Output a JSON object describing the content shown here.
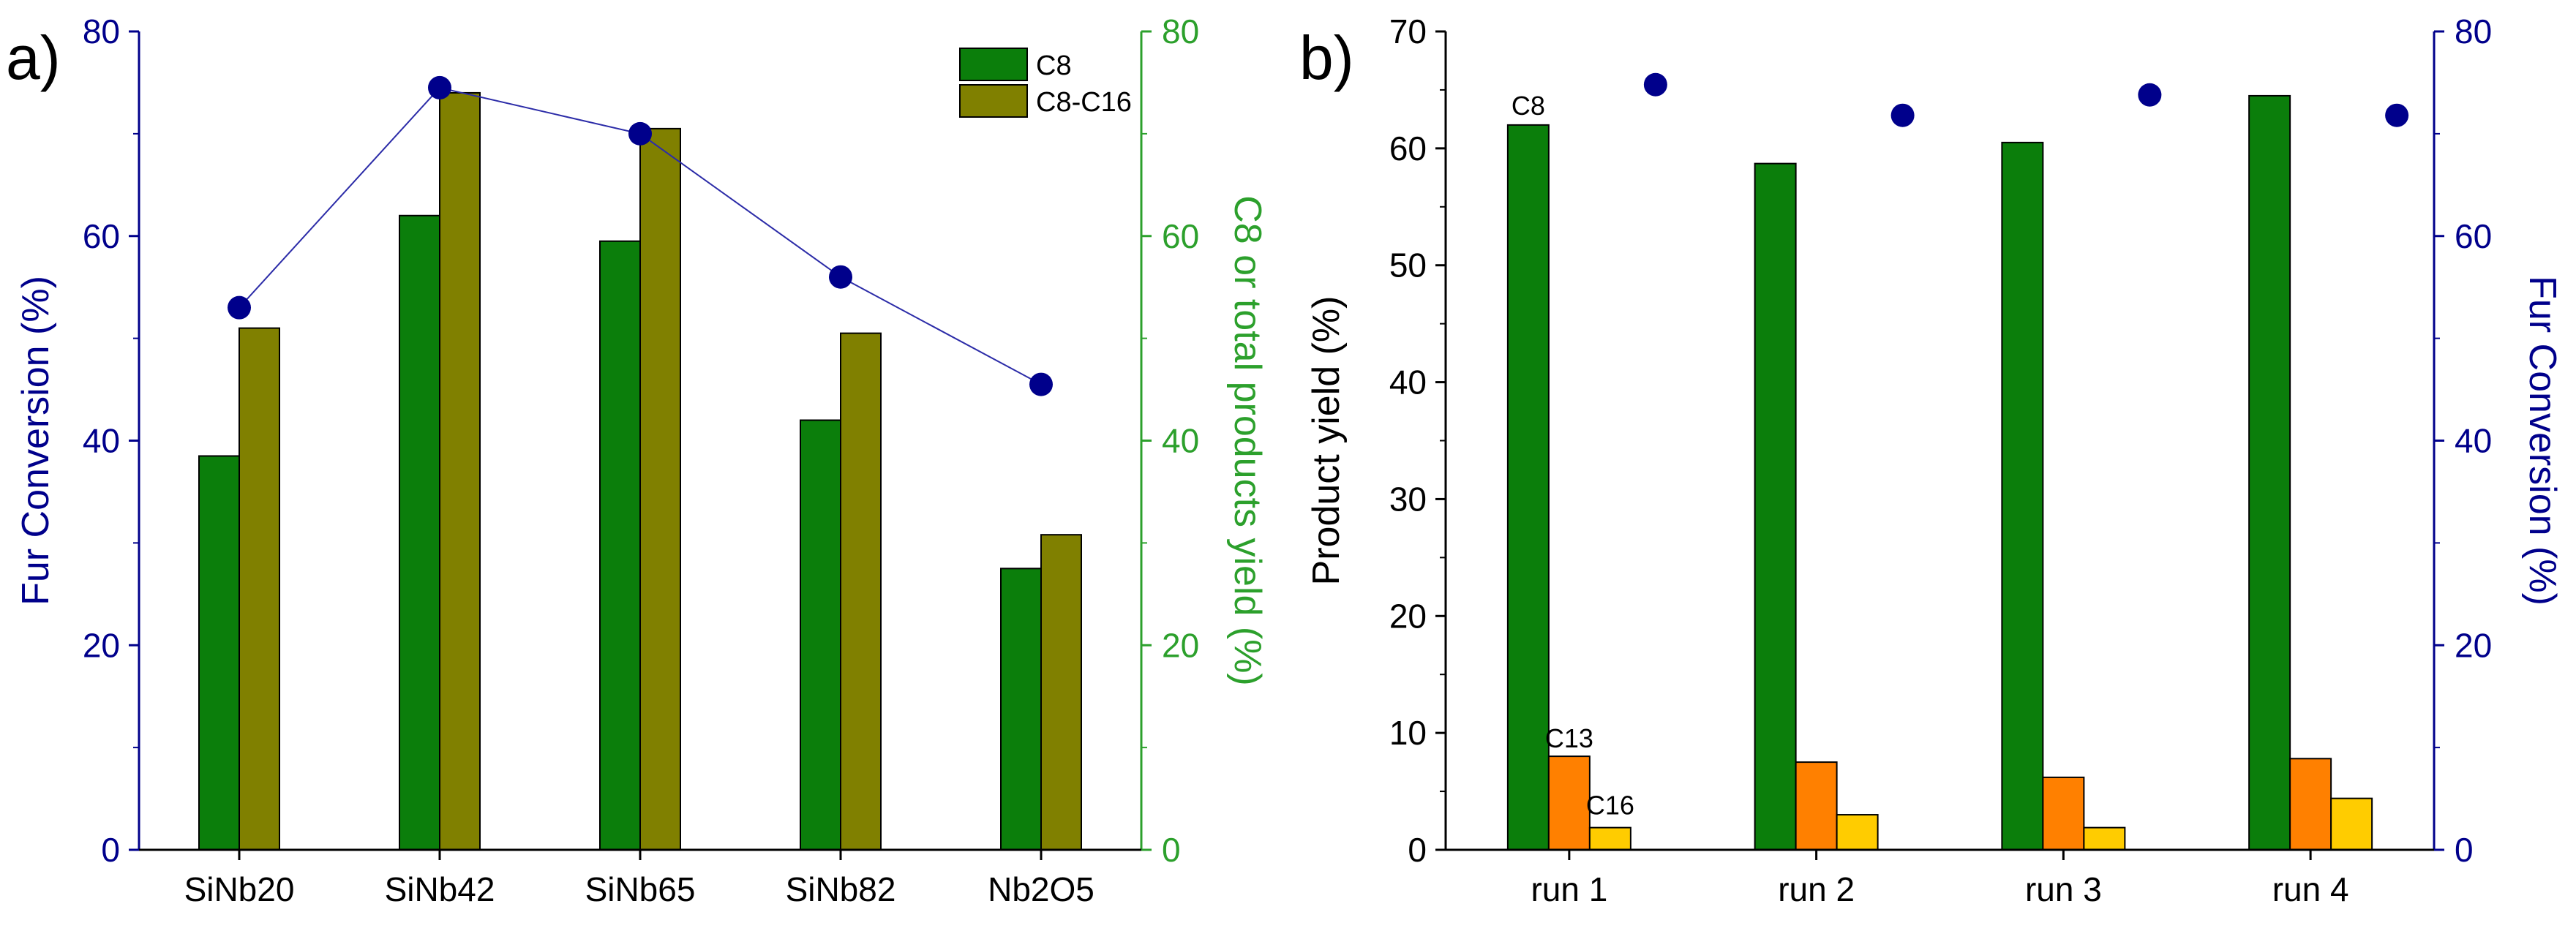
{
  "colors": {
    "c8": "#0b7e0b",
    "c8_c16": "#808000",
    "c13": "#ff8000",
    "c16": "#ffcc00",
    "conversion": "#00008b",
    "conversion_line": "#2c2ca8",
    "right_axis_a": "#2ca02c",
    "axis_black": "#000000"
  },
  "chart_data": [
    {
      "id": "panel_a",
      "type": "bar",
      "panel_label": "a)",
      "categories": [
        "SiNb20",
        "SiNb42",
        "SiNb65",
        "SiNb82",
        "Nb2O5"
      ],
      "series": [
        {
          "name": "C8",
          "axis": "right",
          "values": [
            38.5,
            62,
            59.5,
            42,
            27.5
          ]
        },
        {
          "name": "C8-C16",
          "axis": "right",
          "values": [
            51,
            74,
            70.5,
            50.5,
            30.8
          ]
        },
        {
          "name": "Fur Conversion",
          "axis": "left",
          "type": "line+scatter",
          "values": [
            53,
            74.5,
            70,
            56,
            45.5
          ]
        }
      ],
      "left_axis": {
        "label": "Fur Conversion (%)",
        "range": [
          0,
          80
        ],
        "ticks": [
          "0",
          "20",
          "40",
          "60",
          "80"
        ]
      },
      "right_axis": {
        "label": "C8 or total products yield (%)",
        "range": [
          0,
          80
        ],
        "ticks": [
          "0",
          "20",
          "40",
          "60",
          "80"
        ]
      },
      "legend": {
        "position": "top-right",
        "entries": [
          "C8",
          "C8-C16"
        ]
      }
    },
    {
      "id": "panel_b",
      "type": "bar",
      "panel_label": "b)",
      "categories": [
        "run 1",
        "run 2",
        "run 3",
        "run 4"
      ],
      "series": [
        {
          "name": "C8",
          "axis": "left",
          "values": [
            62,
            58.7,
            60.5,
            64.5
          ]
        },
        {
          "name": "C13",
          "axis": "left",
          "values": [
            8,
            7.5,
            6.2,
            7.8
          ]
        },
        {
          "name": "C16",
          "axis": "left",
          "values": [
            1.9,
            3,
            1.9,
            4.4
          ]
        },
        {
          "name": "Fur Conversion",
          "axis": "right",
          "type": "scatter",
          "values": [
            74.8,
            71.8,
            73.8,
            71.8
          ]
        }
      ],
      "left_axis": {
        "label": "Product yield (%)",
        "range": [
          0,
          70
        ],
        "ticks": [
          "0",
          "10",
          "20",
          "30",
          "40",
          "50",
          "60",
          "70"
        ]
      },
      "right_axis": {
        "label": "Fur Conversion (%)",
        "range": [
          0,
          80
        ],
        "ticks": [
          "0",
          "20",
          "40",
          "60",
          "80"
        ]
      },
      "annotations": [
        "C8",
        "C13",
        "C16"
      ]
    }
  ]
}
